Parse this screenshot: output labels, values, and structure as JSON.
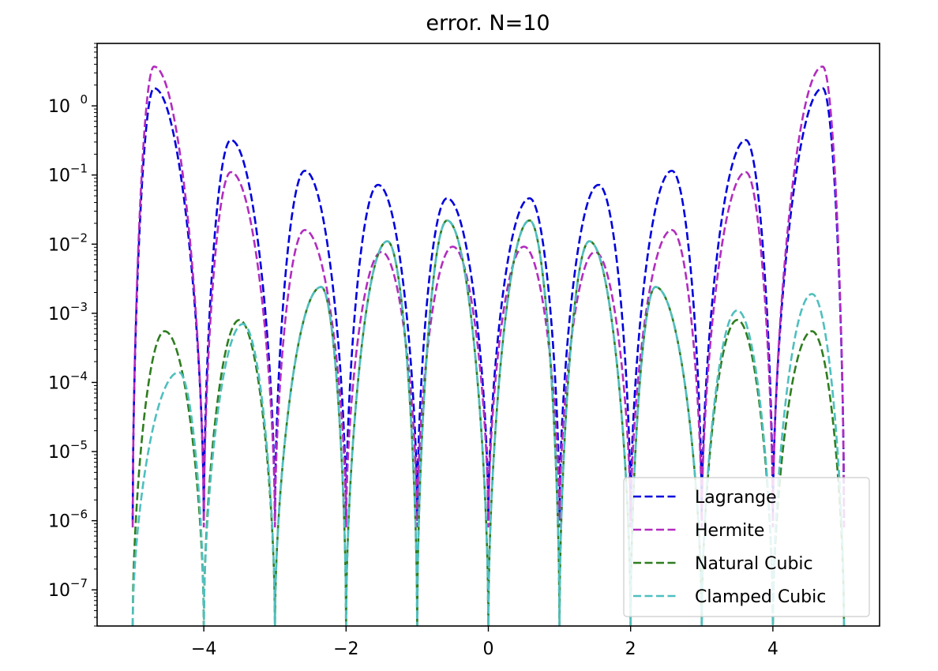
{
  "chart_data": {
    "type": "line",
    "title": "error. N=10",
    "xlabel": "",
    "ylabel": "",
    "yscale": "log",
    "xlim": [
      -5.5,
      5.5
    ],
    "ylim": [
      3e-08,
      8
    ],
    "xticks": [
      {
        "value": -4,
        "label": "−4"
      },
      {
        "value": -2,
        "label": "−2"
      },
      {
        "value": 0,
        "label": "0"
      },
      {
        "value": 2,
        "label": "2"
      },
      {
        "value": 4,
        "label": "4"
      }
    ],
    "yticks": [
      {
        "exp": 0,
        "base": "10",
        "sup": "0"
      },
      {
        "exp": -1,
        "base": "10",
        "sup": "−1"
      },
      {
        "exp": -2,
        "base": "10",
        "sup": "−2"
      },
      {
        "exp": -3,
        "base": "10",
        "sup": "−3"
      },
      {
        "exp": -4,
        "base": "10",
        "sup": "−4"
      },
      {
        "exp": -5,
        "base": "10",
        "sup": "−5"
      },
      {
        "exp": -6,
        "base": "10",
        "sup": "−6"
      },
      {
        "exp": -7,
        "base": "10",
        "sup": "−7"
      }
    ],
    "grid": false,
    "legend_position": "lower-right",
    "series": [
      {
        "name": "Lagrange",
        "color": "#0000dd",
        "style": "dashed",
        "zeros": [
          -5,
          -4,
          -3,
          -2,
          -1,
          0,
          1,
          2,
          3,
          4,
          5
        ],
        "minimum": 1e-06,
        "peaks": [
          {
            "x": -4.7,
            "y": 1.8
          },
          {
            "x": -3.62,
            "y": 0.32
          },
          {
            "x": -2.58,
            "y": 0.115
          },
          {
            "x": -1.55,
            "y": 0.072
          },
          {
            "x": -0.58,
            "y": 0.046
          },
          {
            "x": 0.58,
            "y": 0.046
          },
          {
            "x": 1.55,
            "y": 0.072
          },
          {
            "x": 2.58,
            "y": 0.115
          },
          {
            "x": 3.62,
            "y": 0.32
          },
          {
            "x": 4.7,
            "y": 1.8
          }
        ]
      },
      {
        "name": "Hermite",
        "color": "#b22cbf",
        "style": "dashed",
        "zeros": [
          -5,
          -4,
          -3,
          -2,
          -1,
          0,
          1,
          2,
          3,
          4,
          5
        ],
        "minimum": 8e-07,
        "peaks": [
          {
            "x": -4.7,
            "y": 3.7
          },
          {
            "x": -3.62,
            "y": 0.11
          },
          {
            "x": -2.58,
            "y": 0.016
          },
          {
            "x": -1.5,
            "y": 0.0077
          },
          {
            "x": -0.5,
            "y": 0.0092
          },
          {
            "x": 0.5,
            "y": 0.0092
          },
          {
            "x": 1.5,
            "y": 0.0077
          },
          {
            "x": 2.58,
            "y": 0.016
          },
          {
            "x": 3.62,
            "y": 0.11
          },
          {
            "x": 4.7,
            "y": 3.7
          }
        ]
      },
      {
        "name": "Natural Cubic",
        "color": "#2e7d1f",
        "style": "dashed",
        "zeros": [
          -5,
          -4,
          -3,
          -2,
          -1,
          0,
          1,
          2,
          3,
          4,
          5
        ],
        "minimum": 3e-08,
        "peaks": [
          {
            "x": -4.55,
            "y": 0.00055
          },
          {
            "x": -3.5,
            "y": 0.0008
          },
          {
            "x": -2.35,
            "y": 0.0024
          },
          {
            "x": -1.42,
            "y": 0.011
          },
          {
            "x": -0.58,
            "y": 0.022
          },
          {
            "x": 0.58,
            "y": 0.022
          },
          {
            "x": 1.42,
            "y": 0.011
          },
          {
            "x": 2.35,
            "y": 0.0024
          },
          {
            "x": 3.5,
            "y": 0.0008
          },
          {
            "x": 4.55,
            "y": 0.00055
          }
        ]
      },
      {
        "name": "Clamped Cubic",
        "color": "#4fbfbf",
        "style": "dashed",
        "zeros": [
          -5,
          -4,
          -3,
          -2,
          -1,
          0,
          1,
          2,
          3,
          4,
          5
        ],
        "minimum": 3e-08,
        "peaks": [
          {
            "x": -4.35,
            "y": 0.00014
          },
          {
            "x": -3.45,
            "y": 0.0007
          },
          {
            "x": -2.35,
            "y": 0.0024
          },
          {
            "x": -1.42,
            "y": 0.011
          },
          {
            "x": -0.58,
            "y": 0.022
          },
          {
            "x": 0.58,
            "y": 0.022
          },
          {
            "x": 1.42,
            "y": 0.011
          },
          {
            "x": 2.35,
            "y": 0.0024
          },
          {
            "x": 3.5,
            "y": 0.0011
          },
          {
            "x": 4.55,
            "y": 0.0019
          }
        ]
      }
    ]
  }
}
